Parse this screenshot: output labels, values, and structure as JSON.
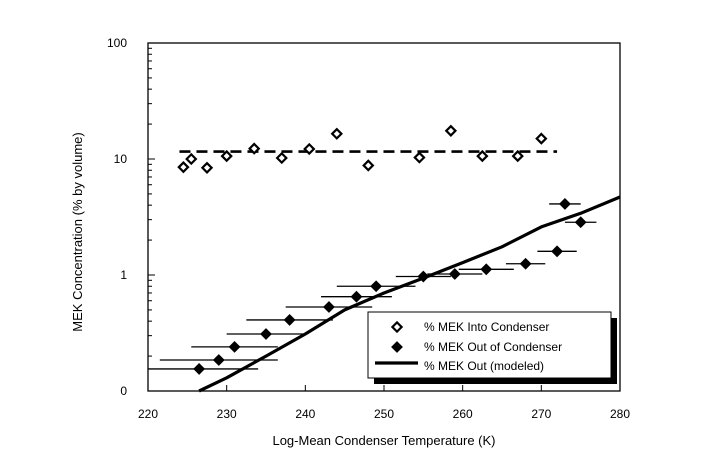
{
  "colors": {
    "background": "#ffffff",
    "ink": "#000000",
    "shadow": "#000000"
  },
  "chart_data": {
    "type": "scatter",
    "title": "",
    "xlabel": "Log-Mean Condenser Temperature (K)",
    "ylabel": "MEK Concentration (% by volume)",
    "xscale": "linear",
    "yscale": "log",
    "xlim": [
      220,
      280
    ],
    "ylim": [
      0.1,
      100
    ],
    "x_ticks": [
      220,
      230,
      240,
      250,
      260,
      270,
      280
    ],
    "y_ticks": [
      {
        "value": 0.1,
        "label": "0"
      },
      {
        "value": 1,
        "label": "1"
      },
      {
        "value": 10,
        "label": "10"
      },
      {
        "value": 100,
        "label": "100"
      }
    ],
    "grid": false,
    "legend_position": "bottom-right",
    "series": [
      {
        "name": "% MEK Into Condenser",
        "marker": "open-diamond",
        "points": [
          {
            "x": 224.5,
            "y": 8.5
          },
          {
            "x": 225.5,
            "y": 10.0
          },
          {
            "x": 227.5,
            "y": 8.4
          },
          {
            "x": 230.0,
            "y": 10.6
          },
          {
            "x": 233.5,
            "y": 12.3
          },
          {
            "x": 237.0,
            "y": 10.2
          },
          {
            "x": 240.5,
            "y": 12.2
          },
          {
            "x": 244.0,
            "y": 16.5
          },
          {
            "x": 248.0,
            "y": 8.8
          },
          {
            "x": 254.5,
            "y": 10.3
          },
          {
            "x": 258.5,
            "y": 17.5
          },
          {
            "x": 262.5,
            "y": 10.6
          },
          {
            "x": 267.0,
            "y": 10.6
          },
          {
            "x": 270.0,
            "y": 15.0
          }
        ]
      },
      {
        "name": "% MEK Out of Condenser",
        "marker": "filled-diamond",
        "points": [
          {
            "x": 226.5,
            "y": 0.155,
            "xerr": 7.5
          },
          {
            "x": 229.0,
            "y": 0.185,
            "xerr": 7.5
          },
          {
            "x": 231.0,
            "y": 0.24,
            "xerr": 5.5
          },
          {
            "x": 235.0,
            "y": 0.31,
            "xerr": 5.0
          },
          {
            "x": 238.0,
            "y": 0.41,
            "xerr": 5.5
          },
          {
            "x": 243.0,
            "y": 0.53,
            "xerr": 5.5
          },
          {
            "x": 246.5,
            "y": 0.65,
            "xerr": 4.5
          },
          {
            "x": 249.0,
            "y": 0.8,
            "xerr": 5.0
          },
          {
            "x": 255.0,
            "y": 0.97,
            "xerr": 3.5
          },
          {
            "x": 259.0,
            "y": 1.02,
            "xerr": 3.5
          },
          {
            "x": 263.0,
            "y": 1.12,
            "xerr": 3.5
          },
          {
            "x": 268.0,
            "y": 1.25,
            "xerr": 2.5
          },
          {
            "x": 272.0,
            "y": 1.6,
            "xerr": 2.5
          },
          {
            "x": 273.0,
            "y": 4.1,
            "xerr": 2.0
          },
          {
            "x": 275.0,
            "y": 2.85,
            "xerr": 2.0
          }
        ]
      },
      {
        "name": "% MEK Out (modeled)",
        "style": "thick-solid-line",
        "points": [
          {
            "x": 226.5,
            "y": 0.1
          },
          {
            "x": 230,
            "y": 0.13
          },
          {
            "x": 235,
            "y": 0.2
          },
          {
            "x": 240,
            "y": 0.31
          },
          {
            "x": 245,
            "y": 0.5
          },
          {
            "x": 250,
            "y": 0.7
          },
          {
            "x": 255,
            "y": 0.94
          },
          {
            "x": 260,
            "y": 1.28
          },
          {
            "x": 265,
            "y": 1.75
          },
          {
            "x": 270,
            "y": 2.6
          },
          {
            "x": 275,
            "y": 3.4
          },
          {
            "x": 280,
            "y": 4.7
          }
        ]
      },
      {
        "name": "",
        "style": "dashed-line",
        "points": [
          {
            "x": 224,
            "y": 11.6
          },
          {
            "x": 272,
            "y": 11.6
          }
        ]
      }
    ]
  }
}
